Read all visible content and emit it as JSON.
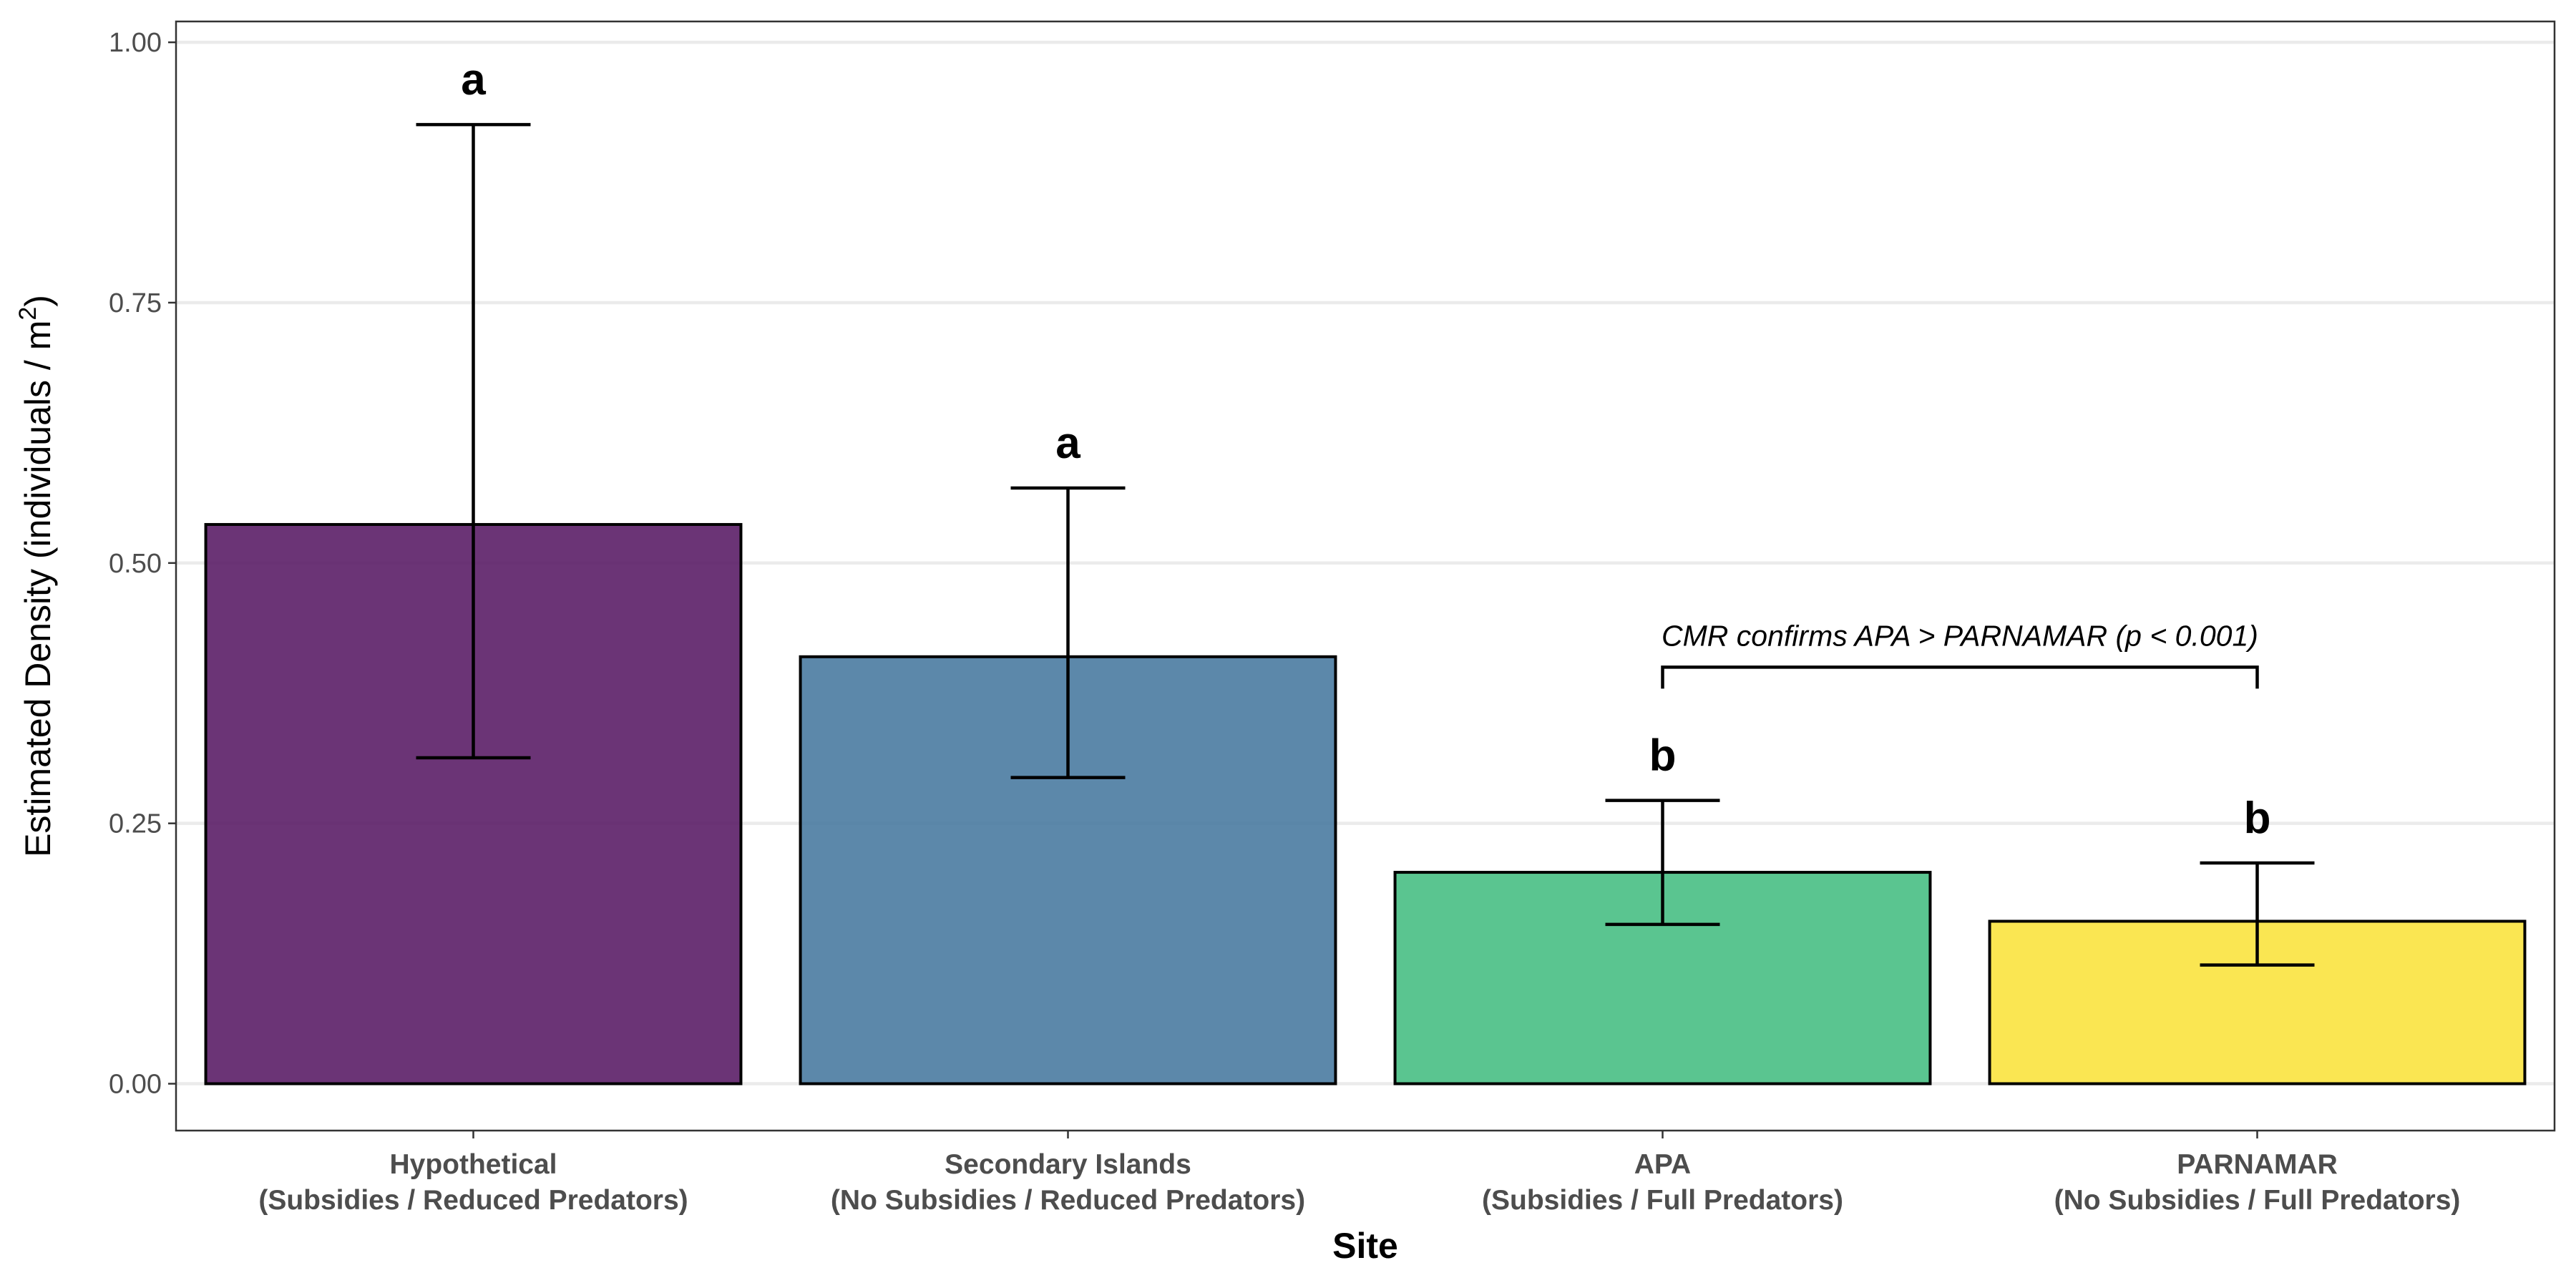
{
  "chart_data": {
    "type": "bar",
    "categories": [
      {
        "line1": "Hypothetical",
        "line2": "(Subsidies / Reduced Predators)"
      },
      {
        "line1": "Secondary Islands",
        "line2": "(No Subsidies / Reduced Predators)"
      },
      {
        "line1": "APA",
        "line2": "(Subsidies / Full Predators)"
      },
      {
        "line1": "PARNAMAR",
        "line2": "(No Subsidies / Full Predators)"
      }
    ],
    "values": [
      0.537,
      0.41,
      0.203,
      0.156
    ],
    "error_low": [
      0.313,
      0.294,
      0.153,
      0.114
    ],
    "error_high": [
      0.921,
      0.572,
      0.272,
      0.212
    ],
    "significance_letters": [
      "a",
      "a",
      "b",
      "b"
    ],
    "colors": [
      "#5b1e67",
      "#4a7ba1",
      "#48bf84",
      "#fae33f"
    ],
    "xlabel": "Site",
    "ylabel": "Estimated Density (individuals / m",
    "ylabel_superscript": "2",
    "ylabel_suffix": ")",
    "ylim": [
      -0.045,
      1.02
    ],
    "yticks": [
      "0.00",
      "0.25",
      "0.50",
      "0.75",
      "1.00"
    ],
    "grid": "horizontal",
    "annotation": {
      "text": "CMR confirms APA > PARNAMAR (p < 0.001)",
      "from_category": 2,
      "to_category": 3,
      "y": 0.4
    }
  }
}
